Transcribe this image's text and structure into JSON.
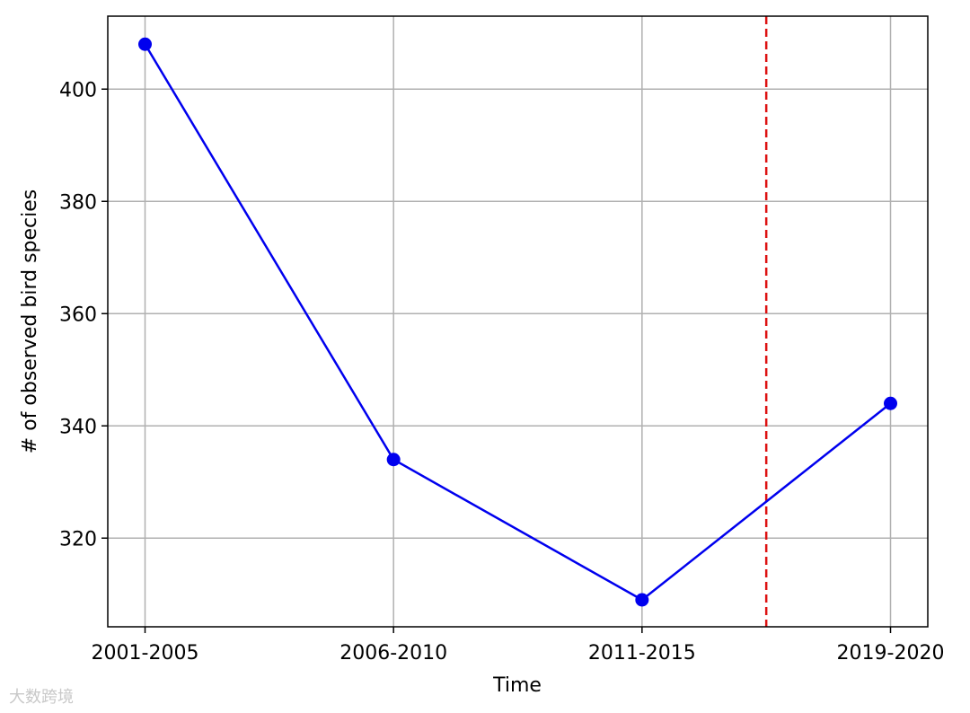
{
  "chart_data": {
    "type": "line",
    "xlabel": "Time",
    "ylabel": "# of observed bird species",
    "categories": [
      "2001-2005",
      "2006-2010",
      "2011-2015",
      "2019-2020"
    ],
    "series": [
      {
        "name": "observed bird species",
        "color": "#0000ee",
        "values": [
          408,
          334,
          309,
          344
        ]
      }
    ],
    "xlim": [
      -0.15,
      3.15
    ],
    "ylim": [
      304.2,
      413
    ],
    "yticks": [
      320,
      340,
      360,
      380,
      400
    ],
    "grid": true,
    "vline": {
      "x": 2.5,
      "color": "#dd1111"
    },
    "watermark": "大数跨境"
  }
}
